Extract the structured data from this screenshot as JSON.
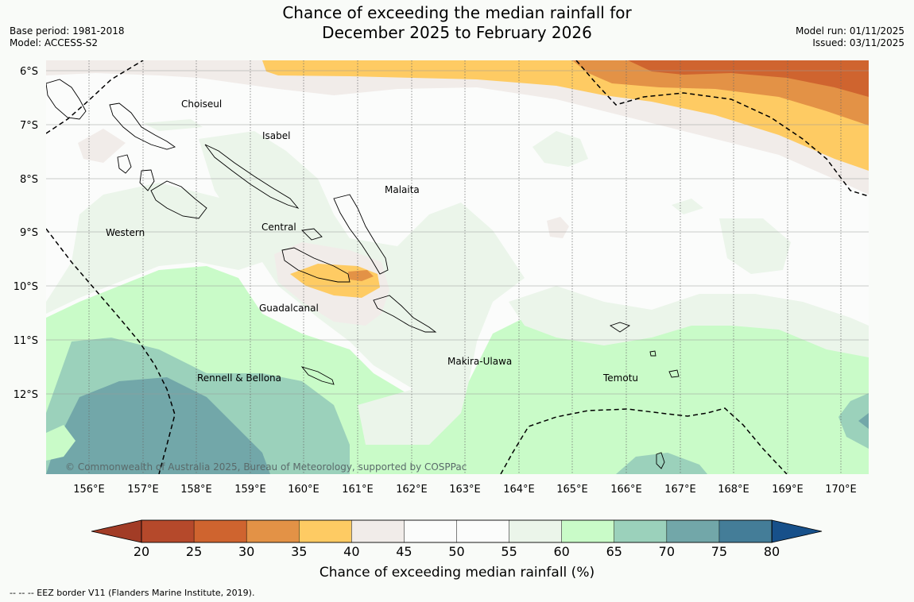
{
  "title_line1": "Chance of exceeding the median rainfall for",
  "title_line2": "December 2025 to February 2026",
  "base_period": "Base period: 1981-2018",
  "model": "Model: ACCESS-S2",
  "model_run": "Model run: 01/11/2025",
  "issued": "Issued: 03/11/2025",
  "lat_labels": [
    "6°S",
    "7°S",
    "8°S",
    "9°S",
    "10°S",
    "11°S",
    "12°S"
  ],
  "lon_labels": [
    "156°E",
    "157°E",
    "158°E",
    "159°E",
    "160°E",
    "161°E",
    "162°E",
    "163°E",
    "164°E",
    "165°E",
    "166°E",
    "167°E",
    "168°E",
    "169°E",
    "170°E"
  ],
  "places": {
    "choiseul": "Choiseul",
    "isabel": "Isabel",
    "malaita": "Malaita",
    "western": "Western",
    "central": "Central",
    "guadalcanal": "Guadalcanal",
    "makira": "Makira-Ulawa",
    "rennell": "Rennell & Bellona",
    "temotu": "Temotu"
  },
  "copyright": "© Commonwealth of Australia 2025, Bureau of Meteorology, supported by COSPPac",
  "colorbar": {
    "ticks": [
      "20",
      "25",
      "30",
      "35",
      "40",
      "45",
      "50",
      "55",
      "60",
      "65",
      "70",
      "75",
      "80"
    ],
    "colors": [
      "#b5492b",
      "#cf642f",
      "#e39246",
      "#fecb63",
      "#f1ece9",
      "#fbfcfb",
      "#fbfcfb",
      "#ebf5ea",
      "#c9fbc8",
      "#9bd1bb",
      "#72a7a9",
      "#447d98"
    ],
    "extend_low": "#a23c26",
    "extend_high": "#17508a",
    "label": "Chance of exceeding median rainfall (%)"
  },
  "footnote": "-- -- -- EEZ border V11 (Flanders Marine Institute, 2019)."
}
